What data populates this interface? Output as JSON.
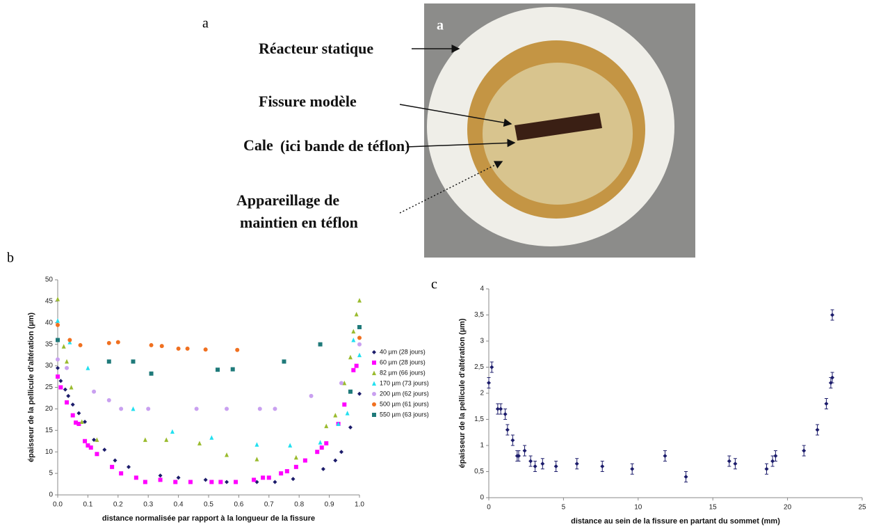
{
  "figure": {
    "panel_labels": [
      "a",
      "b",
      "c"
    ]
  },
  "photo": {
    "corner_label": "a",
    "labels": [
      "Réacteur statique",
      "Fissure modèle",
      "Cale",
      "(ici bande de téflon)",
      "Appareillage de",
      "maintien en téflon"
    ]
  },
  "chart_data": [
    {
      "type": "scatter",
      "xlabel": "distance normalisée par rapport à la longueur de la fissure",
      "ylabel": "épaisseur de la pellicule d'altération (µm)",
      "xlim": [
        0,
        1
      ],
      "xticks": [
        {
          "value": 0,
          "label": "0.0"
        },
        0.1,
        0.2,
        0.3,
        0.4,
        0.5,
        0.6,
        0.7,
        0.8,
        0.9,
        {
          "value": 1,
          "label": "1.0"
        }
      ],
      "ylim": [
        0,
        50
      ],
      "yticks": [
        0,
        5,
        10,
        15,
        20,
        25,
        30,
        35,
        40,
        45,
        50
      ],
      "grid": false,
      "legend": "right",
      "series": [
        {
          "name": "40 µm (28 jours)",
          "color": "#1c1c6b",
          "marker": "diamond",
          "x": [
            0.0,
            0.01,
            0.025,
            0.035,
            0.05,
            0.07,
            0.09,
            0.12,
            0.155,
            0.19,
            0.235,
            0.34,
            0.4,
            0.49,
            0.56,
            0.66,
            0.72,
            0.78,
            0.88,
            0.92,
            0.94,
            0.97,
            1.0
          ],
          "values": [
            29.5,
            26.5,
            24.5,
            23,
            21,
            19,
            17,
            12.8,
            10.5,
            8,
            6.5,
            4.5,
            4,
            3.5,
            3,
            3,
            3,
            3.7,
            6,
            8,
            10,
            15.7,
            23.5
          ]
        },
        {
          "name": "60 µm (28 jours)",
          "color": "#ff00ff",
          "marker": "square",
          "x": [
            0.0,
            0.01,
            0.03,
            0.05,
            0.06,
            0.07,
            0.09,
            0.1,
            0.11,
            0.13,
            0.18,
            0.21,
            0.26,
            0.29,
            0.34,
            0.39,
            0.44,
            0.51,
            0.54,
            0.59,
            0.65,
            0.68,
            0.7,
            0.74,
            0.76,
            0.79,
            0.82,
            0.86,
            0.875,
            0.89,
            0.93,
            0.95,
            0.98,
            0.99
          ],
          "values": [
            27.5,
            25,
            21.5,
            18.5,
            16.8,
            16.5,
            12.5,
            11.5,
            11,
            9.5,
            6.5,
            5,
            4,
            3,
            3.5,
            3,
            3,
            3,
            3,
            3,
            3.5,
            4,
            4,
            5,
            5.5,
            6.5,
            8,
            10,
            11,
            12,
            16.5,
            21,
            29,
            30
          ]
        },
        {
          "name": "82 µm (66 jours)",
          "color": "#9abb2e",
          "marker": "triangle",
          "x": [
            0.0,
            0.02,
            0.03,
            0.045,
            0.08,
            0.13,
            0.29,
            0.36,
            0.47,
            0.56,
            0.66,
            0.79,
            0.89,
            0.92,
            0.95,
            0.97,
            0.98,
            0.99,
            1.0
          ],
          "values": [
            45.5,
            34.5,
            31,
            25,
            17,
            12.8,
            12.8,
            12.8,
            12,
            9.3,
            8.3,
            8.7,
            16,
            18.5,
            26,
            32,
            38,
            42,
            45.2
          ]
        },
        {
          "name": "170 µm (73 jours)",
          "color": "#22e0f0",
          "marker": "triangle",
          "x": [
            0.0,
            0.04,
            0.1,
            0.25,
            0.38,
            0.51,
            0.66,
            0.77,
            0.87,
            0.93,
            0.96,
            0.98,
            1.0
          ],
          "values": [
            40.5,
            35.5,
            29.5,
            20,
            14.7,
            13.3,
            11.7,
            11.5,
            12.2,
            16.5,
            19,
            36,
            32.5
          ]
        },
        {
          "name": "200 µm (62 jours)",
          "color": "#c9a0f0",
          "marker": "circle",
          "x": [
            0.0,
            0.03,
            0.12,
            0.17,
            0.21,
            0.3,
            0.46,
            0.56,
            0.67,
            0.72,
            0.84,
            0.94,
            1.0
          ],
          "values": [
            31.5,
            29.5,
            24,
            22,
            20,
            20,
            20,
            20,
            20,
            20,
            23,
            26,
            35
          ]
        },
        {
          "name": "500 µm (61 jours)",
          "color": "#f07020",
          "marker": "circle",
          "x": [
            0.0,
            0.04,
            0.075,
            0.17,
            0.2,
            0.31,
            0.345,
            0.4,
            0.43,
            0.49,
            0.595,
            1.0
          ],
          "values": [
            39.5,
            36,
            34.8,
            35.3,
            35.5,
            34.8,
            34.6,
            34,
            34,
            33.8,
            33.7,
            36.5
          ]
        },
        {
          "name": "550 µm (63 jours)",
          "color": "#1f7a7a",
          "marker": "square",
          "x": [
            0.0,
            0.17,
            0.25,
            0.31,
            0.53,
            0.58,
            0.75,
            0.87,
            0.97,
            1.0
          ],
          "values": [
            36,
            31,
            31,
            28.2,
            29.1,
            29.2,
            31,
            35,
            24,
            39
          ]
        }
      ]
    },
    {
      "type": "errorbar",
      "xlabel": "distance au sein de la fissure en partant du sommet (mm)",
      "ylabel": "épaisseur de la pellicule d'altération (µm)",
      "xlim": [
        0,
        25
      ],
      "xticks": [
        0,
        5,
        10,
        15,
        20,
        25
      ],
      "ylim": [
        0,
        4
      ],
      "yticks": [
        0,
        {
          "value": 0.5,
          "label": "0,5"
        },
        1,
        {
          "value": 1.5,
          "label": "1,5"
        },
        2,
        {
          "value": 2.5,
          "label": "2,5"
        },
        3,
        {
          "value": 3.5,
          "label": "3,5"
        },
        4
      ],
      "grid": false,
      "color": "#1c1c6b",
      "x": [
        0,
        0.2,
        0.6,
        0.8,
        1.1,
        1.25,
        1.6,
        1.9,
        2.0,
        2.4,
        2.8,
        3.1,
        3.6,
        4.5,
        5.9,
        7.6,
        9.6,
        11.8,
        13.2,
        16.1,
        16.5,
        18.6,
        19.0,
        19.2,
        21.1,
        22.0,
        22.6,
        22.9,
        23.0,
        23.0
      ],
      "values": [
        2.2,
        2.5,
        1.7,
        1.7,
        1.6,
        1.3,
        1.1,
        0.8,
        0.8,
        0.9,
        0.7,
        0.6,
        0.65,
        0.6,
        0.65,
        0.6,
        0.55,
        0.8,
        0.4,
        0.7,
        0.65,
        0.55,
        0.7,
        0.8,
        0.9,
        1.3,
        1.8,
        2.2,
        2.3,
        3.5
      ],
      "errors": [
        0.1,
        0.1,
        0.1,
        0.1,
        0.1,
        0.1,
        0.1,
        0.1,
        0.1,
        0.1,
        0.1,
        0.1,
        0.1,
        0.1,
        0.1,
        0.1,
        0.1,
        0.1,
        0.1,
        0.1,
        0.1,
        0.1,
        0.1,
        0.1,
        0.1,
        0.1,
        0.1,
        0.1,
        0.1,
        0.1
      ]
    }
  ]
}
